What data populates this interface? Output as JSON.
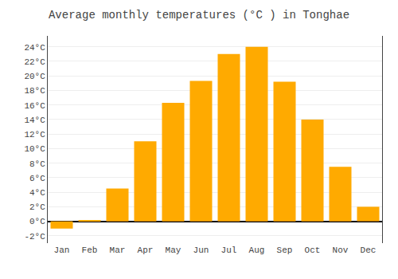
{
  "chart_data": {
    "type": "bar",
    "title": "Average monthly temperatures (°C ) in Tonghae",
    "categories": [
      "Jan",
      "Feb",
      "Mar",
      "Apr",
      "May",
      "Jun",
      "Jul",
      "Aug",
      "Sep",
      "Oct",
      "Nov",
      "Dec"
    ],
    "values": [
      -1.0,
      0.1,
      4.5,
      11.0,
      16.3,
      19.3,
      23.0,
      24.0,
      19.2,
      14.0,
      7.5,
      2.0
    ],
    "color": "#FFAA00",
    "ylim": [
      -3.0,
      25.5
    ],
    "yticks": [
      {
        "value": 24,
        "label": "24°C"
      },
      {
        "value": 22,
        "label": "22°C"
      },
      {
        "value": 20,
        "label": "20°C"
      },
      {
        "value": 18,
        "label": "18°C"
      },
      {
        "value": 16,
        "label": "16°C"
      },
      {
        "value": 14,
        "label": "14°C"
      },
      {
        "value": 12,
        "label": "12°C"
      },
      {
        "value": 10,
        "label": "10°C"
      },
      {
        "value": 8,
        "label": "8°C"
      },
      {
        "value": 6,
        "label": "6°C"
      },
      {
        "value": 4,
        "label": "4°C"
      },
      {
        "value": 2,
        "label": "2°C"
      },
      {
        "value": 0,
        "label": "0°C"
      },
      {
        "value": -2,
        "label": "-2°C"
      }
    ],
    "grid": true
  }
}
